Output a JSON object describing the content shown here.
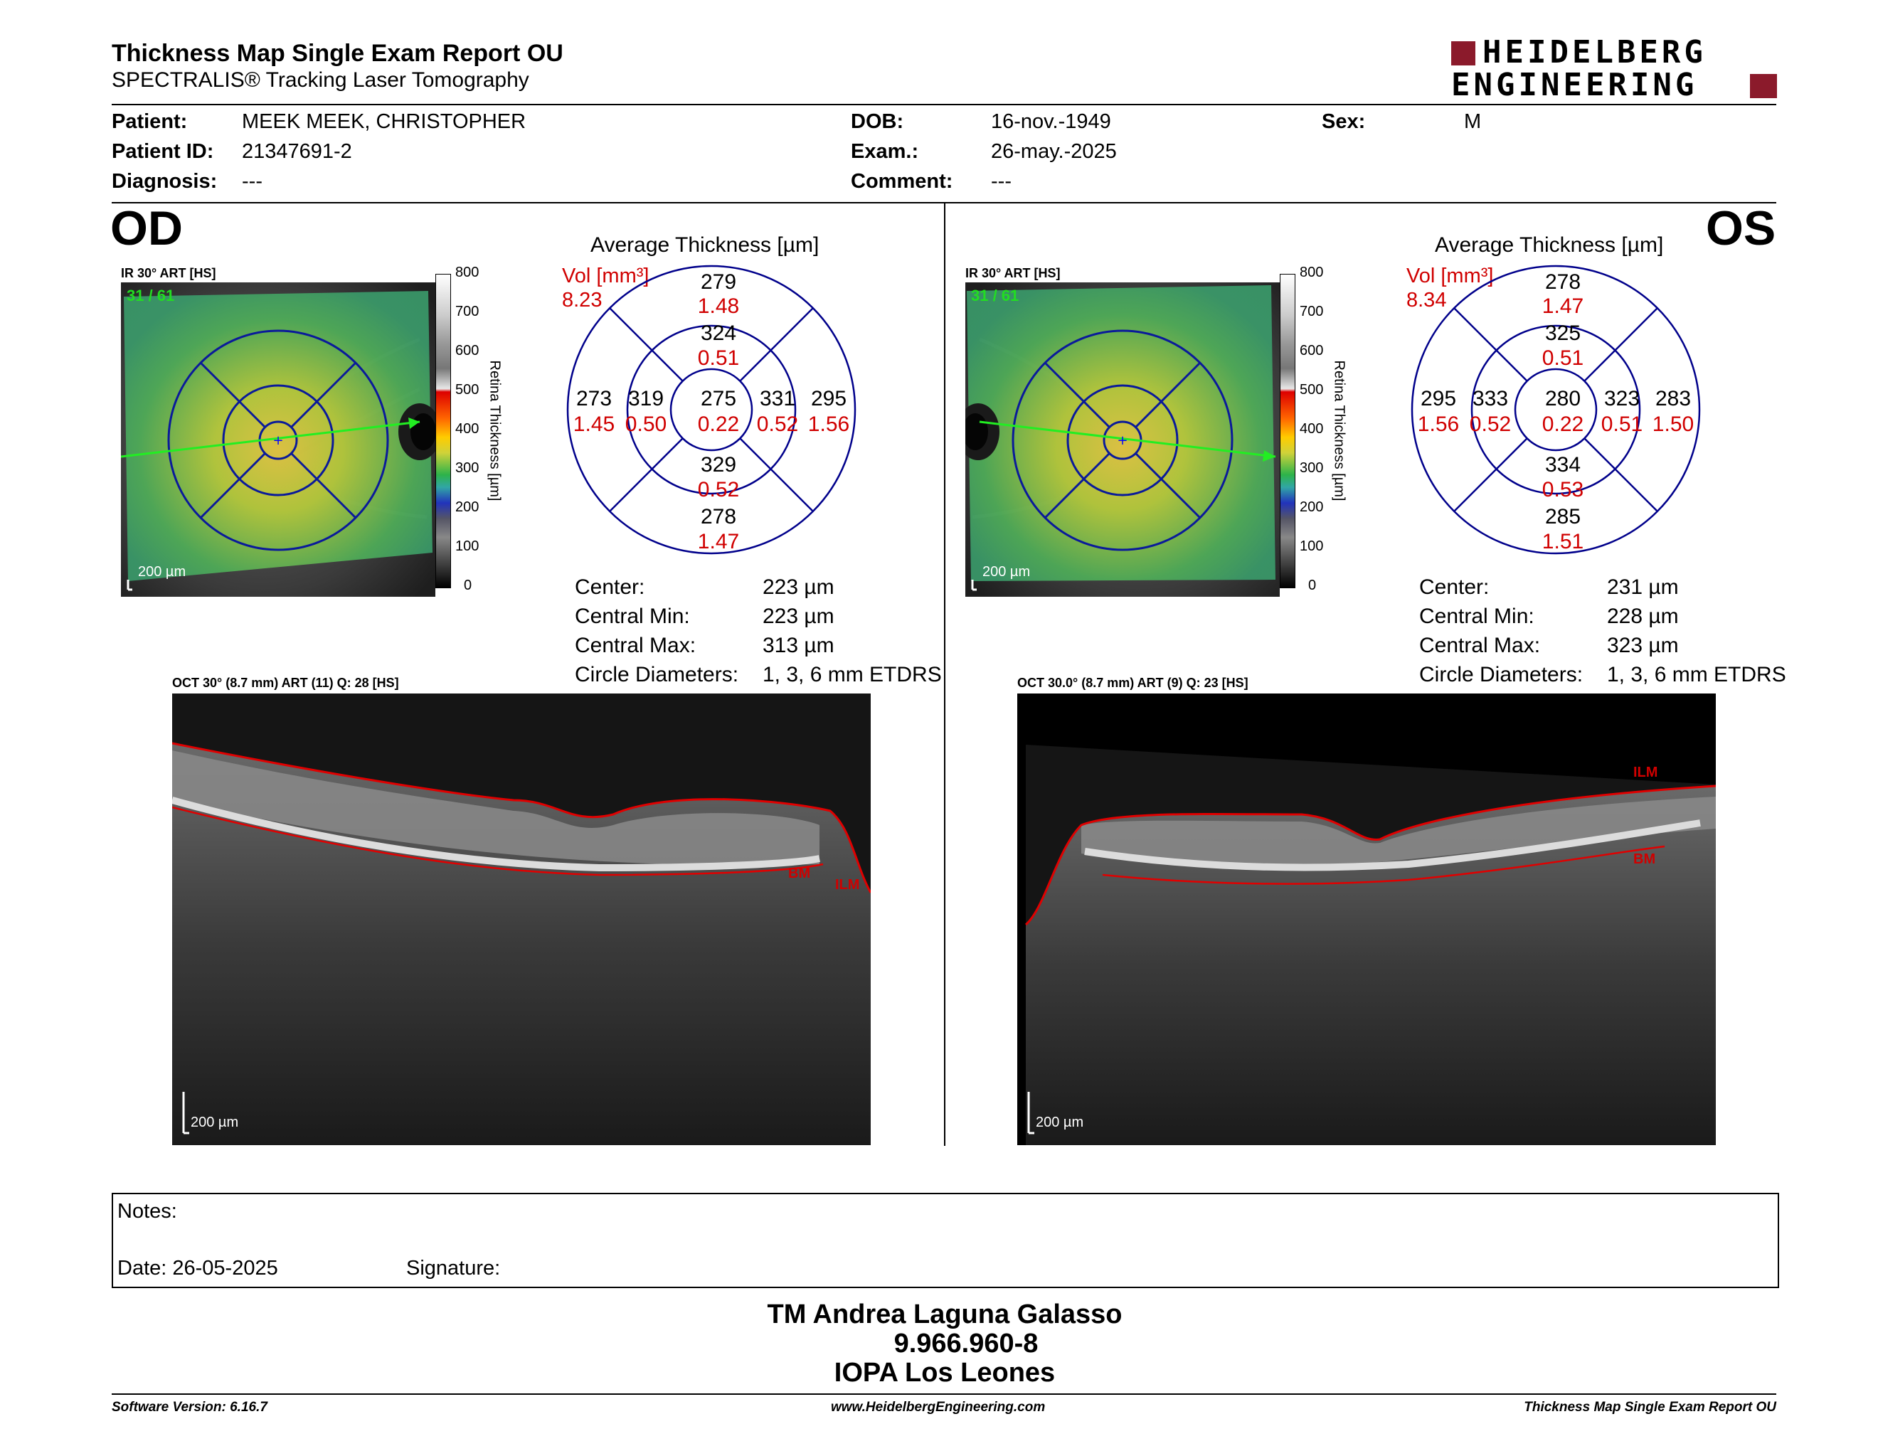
{
  "report": {
    "title": "Thickness Map Single Exam Report OU",
    "subtitle": "SPECTRALIS® Tracking Laser Tomography",
    "logo_line1": "HEIDELBERG",
    "logo_line2": "ENGINEERING"
  },
  "patient": {
    "patient_label": "Patient:",
    "patient_value": "MEEK MEEK, CHRISTOPHER",
    "id_label": "Patient ID:",
    "id_value": "21347691-2",
    "diagnosis_label": "Diagnosis:",
    "diagnosis_value": "---",
    "dob_label": "DOB:",
    "dob_value": "16-nov.-1949",
    "exam_label": "Exam.:",
    "exam_value": "26-may.-2025",
    "comment_label": "Comment:",
    "comment_value": "---",
    "sex_label": "Sex:",
    "sex_value": "M"
  },
  "colorbar": {
    "ticks": [
      "800",
      "700",
      "600",
      "500",
      "400",
      "300",
      "200",
      "100",
      "0"
    ],
    "label": "Retina Thickness [µm]"
  },
  "od": {
    "eye": "OD",
    "fundus_label": "IR 30° ART [HS]",
    "frame_count": "31 / 61",
    "scale": "200 µm",
    "avg_title": "Average Thickness [µm]",
    "vol_label": "Vol [mm³]",
    "vol_value": "8.23",
    "etdrs": {
      "center": "275",
      "center_vol": "0.22",
      "inner_sup": "324",
      "inner_sup_vol": "0.51",
      "inner_inf": "329",
      "inner_inf_vol": "0.52",
      "inner_left": "319",
      "inner_left_vol": "0.50",
      "inner_right": "331",
      "inner_right_vol": "0.52",
      "outer_sup": "279",
      "outer_sup_vol": "1.48",
      "outer_inf": "278",
      "outer_inf_vol": "1.47",
      "outer_left": "273",
      "outer_left_vol": "1.45",
      "outer_right": "295",
      "outer_right_vol": "1.56"
    },
    "stats": {
      "center_label": "Center:",
      "center_value": "223 µm",
      "min_label": "Central Min:",
      "min_value": "223 µm",
      "max_label": "Central Max:",
      "max_value": "313 µm",
      "diam_label": "Circle Diameters:",
      "diam_value": "1, 3, 6 mm ETDRS"
    },
    "oct_label": "OCT 30° (8.7 mm) ART (11) Q: 28 [HS]",
    "oct_scale": "200 µm",
    "ilm": "ILM",
    "bm": "BM"
  },
  "os": {
    "eye": "OS",
    "fundus_label": "IR 30° ART [HS]",
    "frame_count": "31 / 61",
    "scale": "200 µm",
    "avg_title": "Average Thickness [µm]",
    "vol_label": "Vol [mm³]",
    "vol_value": "8.34",
    "etdrs": {
      "center": "280",
      "center_vol": "0.22",
      "inner_sup": "325",
      "inner_sup_vol": "0.51",
      "inner_inf": "334",
      "inner_inf_vol": "0.53",
      "inner_left": "333",
      "inner_left_vol": "0.52",
      "inner_right": "323",
      "inner_right_vol": "0.51",
      "outer_sup": "278",
      "outer_sup_vol": "1.47",
      "outer_inf": "285",
      "outer_inf_vol": "1.51",
      "outer_left": "295",
      "outer_left_vol": "1.56",
      "outer_right": "283",
      "outer_right_vol": "1.50"
    },
    "stats": {
      "center_label": "Center:",
      "center_value": "231 µm",
      "min_label": "Central Min:",
      "min_value": "228 µm",
      "max_label": "Central Max:",
      "max_value": "323 µm",
      "diam_label": "Circle Diameters:",
      "diam_value": "1, 3, 6 mm ETDRS"
    },
    "oct_label": "OCT 30.0° (8.7 mm) ART (9) Q: 23 [HS]",
    "oct_scale": "200 µm",
    "ilm": "ILM",
    "bm": "BM"
  },
  "notes": {
    "notes_label": "Notes:",
    "date_label": "Date: 26-05-2025",
    "signature_label": "Signature:"
  },
  "signature": {
    "name": "TM Andrea Laguna Galasso",
    "id": "9.966.960-8",
    "institution": "IOPA Los Leones"
  },
  "footer": {
    "software": "Software Version: 6.16.7",
    "website": "www.HeidelbergEngineering.com",
    "report": "Thickness Map Single Exam Report OU"
  },
  "colors": {
    "red": "#d00000",
    "navy": "#00008b",
    "logo_red": "#8b1a2b",
    "green_label": "#22dd22"
  }
}
